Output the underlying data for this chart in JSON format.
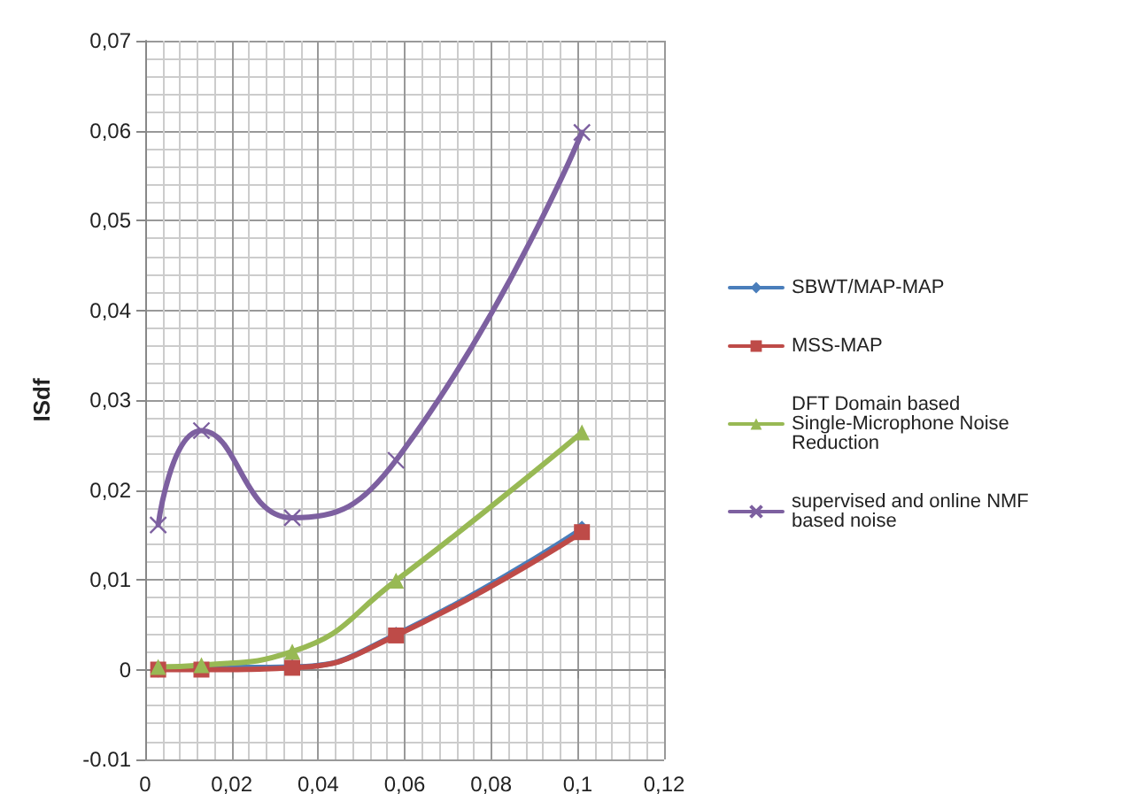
{
  "chart_data": {
    "type": "line",
    "ylabel": "ISdf",
    "x": [
      0.003,
      0.013,
      0.034,
      0.058,
      0.101
    ],
    "series": [
      {
        "name": "SBWT/MAP-MAP",
        "color": "#4a7ebb",
        "marker": "diamond",
        "values": [
          0,
          0.0002,
          0.0003,
          0.0039,
          0.0157
        ]
      },
      {
        "name": "MSS-MAP",
        "color": "#be4b48",
        "marker": "square",
        "values": [
          0,
          0,
          0.0002,
          0.0038,
          0.0153
        ]
      },
      {
        "name": "DFT Domain based Single-Microphone Noise Reduction",
        "color": "#98b954",
        "marker": "triangle",
        "values": [
          0.0003,
          0.0005,
          0.002,
          0.0099,
          0.0264
        ]
      },
      {
        "name": "supervised and online NMF based noise",
        "color": "#7d60a0",
        "marker": "cross",
        "values": [
          0.0161,
          0.0266,
          0.0169,
          0.0233,
          0.0598
        ]
      }
    ],
    "xlim": [
      0,
      0.12
    ],
    "xticks": [
      0,
      {
        "value": 0.02,
        "label": "0,02"
      },
      {
        "value": 0.04,
        "label": "0,04"
      },
      {
        "value": 0.06,
        "label": "0,06"
      },
      {
        "value": 0.08,
        "label": "0,08"
      },
      {
        "value": 0.1,
        "label": "0,1"
      },
      {
        "value": 0.12,
        "label": "0,12"
      }
    ],
    "ylim": [
      -0.01,
      0.07
    ],
    "yticks": [
      {
        "value": -0.01,
        "label": "-0.01"
      },
      0,
      {
        "value": 0.01,
        "label": "0,01"
      },
      {
        "value": 0.02,
        "label": "0,02"
      },
      {
        "value": 0.03,
        "label": "0,03"
      },
      {
        "value": 0.04,
        "label": "0,04"
      },
      {
        "value": 0.05,
        "label": "0,05"
      },
      {
        "value": 0.06,
        "label": "0,06"
      },
      {
        "value": 0.07,
        "label": "0,07"
      }
    ],
    "grid": true,
    "legend": "right",
    "line_style": "solid"
  }
}
